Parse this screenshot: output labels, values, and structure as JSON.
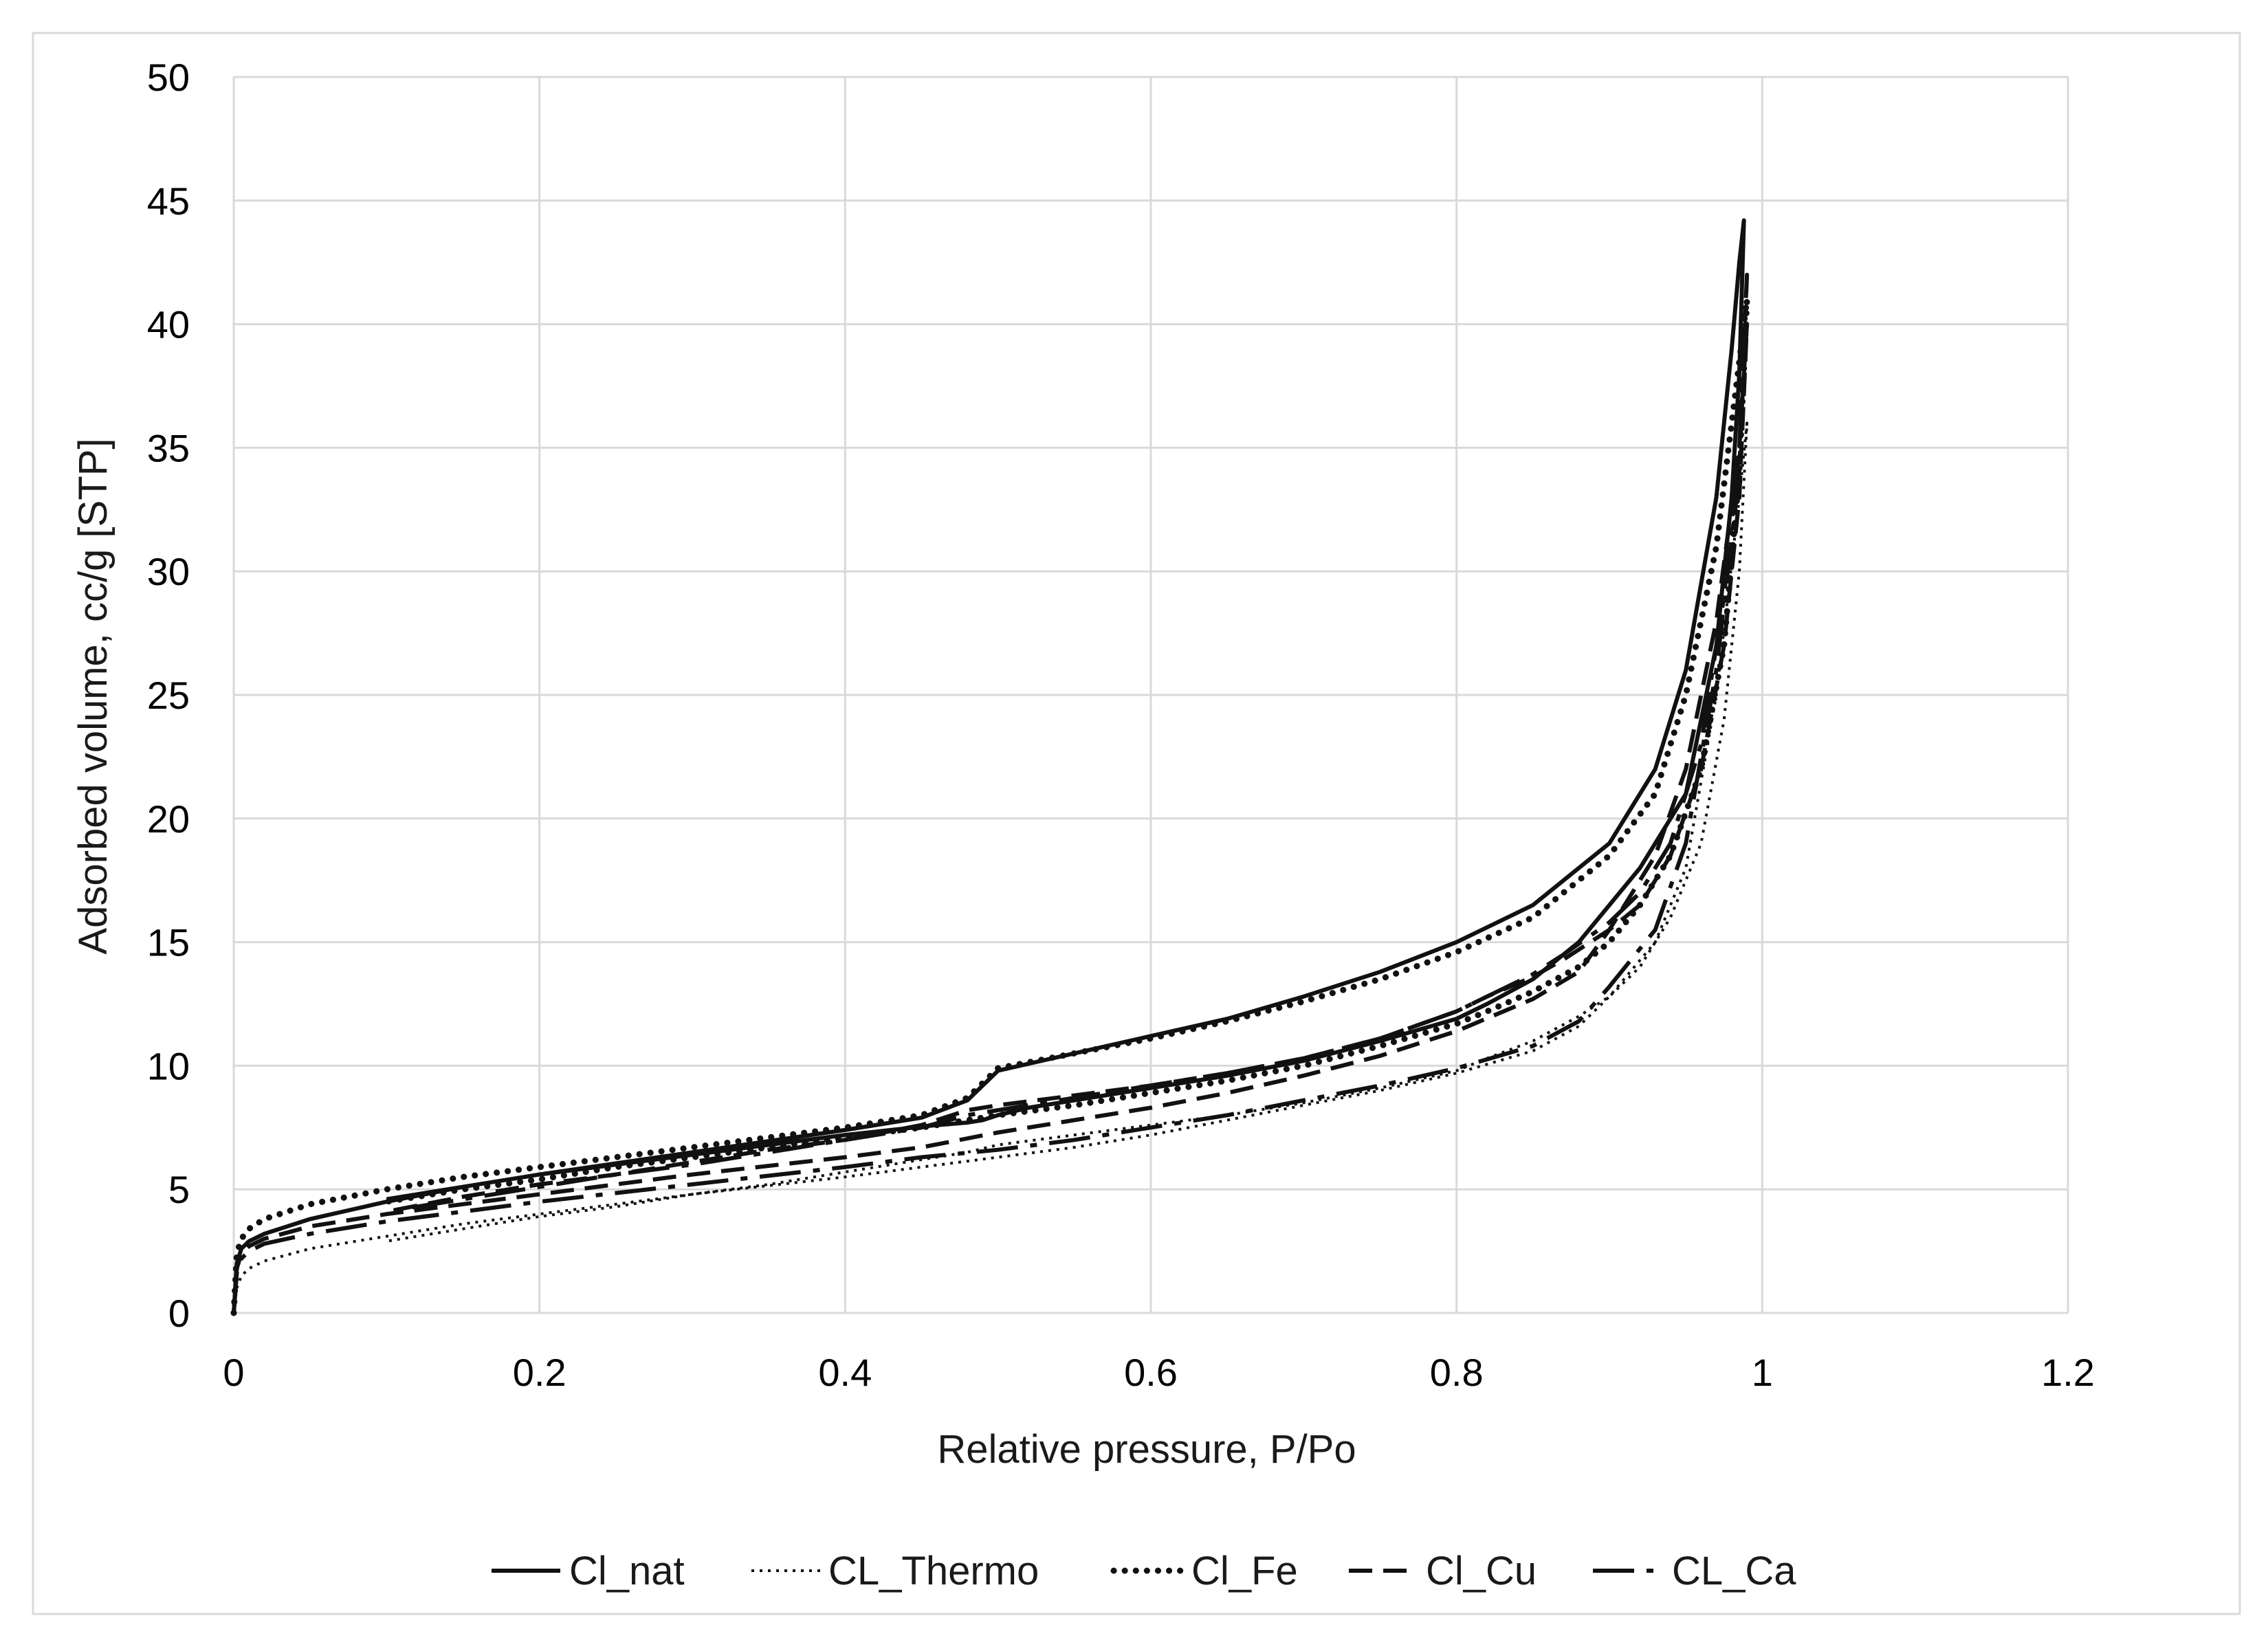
{
  "chart_data": {
    "type": "line",
    "title": "",
    "xlabel": "Relative pressure, P/Po",
    "ylabel": "Adsorbed volume, cc/g [STP]",
    "xlim": [
      0,
      1.2
    ],
    "ylim": [
      0,
      50
    ],
    "xticks": [
      0,
      0.2,
      0.4,
      0.6,
      0.8,
      1,
      1.2
    ],
    "xtick_labels": [
      "0",
      "0.2",
      "0.4",
      "0.6",
      "0.8",
      "1",
      "1.2"
    ],
    "yticks": [
      0,
      5,
      10,
      15,
      20,
      25,
      30,
      35,
      40,
      45,
      50
    ],
    "ytick_labels": [
      "0",
      "5",
      "10",
      "15",
      "20",
      "25",
      "30",
      "35",
      "40",
      "45",
      "50"
    ],
    "grid": true,
    "legend_position": "bottom",
    "series": [
      {
        "name": "Cl_nat",
        "style": "solid",
        "x": [
          0,
          0.002,
          0.005,
          0.01,
          0.02,
          0.05,
          0.1,
          0.15,
          0.2,
          0.3,
          0.4,
          0.45,
          0.48,
          0.5,
          0.55,
          0.6,
          0.65,
          0.7,
          0.75,
          0.8,
          0.85,
          0.9,
          0.93,
          0.95,
          0.97,
          0.98,
          0.985,
          0.988,
          0.985,
          0.98,
          0.97,
          0.95,
          0.92,
          0.9,
          0.88,
          0.85,
          0.82,
          0.8,
          0.75,
          0.7,
          0.65,
          0.6,
          0.55,
          0.52,
          0.5,
          0.49,
          0.48,
          0.46,
          0.43,
          0.4,
          0.35,
          0.3,
          0.25,
          0.2,
          0.15,
          0.1
        ],
        "y": [
          0,
          2.0,
          2.6,
          2.9,
          3.2,
          3.8,
          4.5,
          5.1,
          5.6,
          6.5,
          7.4,
          7.9,
          8.6,
          9.8,
          10.5,
          11.2,
          11.9,
          12.8,
          13.8,
          15.0,
          16.5,
          19.0,
          22.0,
          26.0,
          33.0,
          39.0,
          42.5,
          44.2,
          38.0,
          33.0,
          27.0,
          21.0,
          18.0,
          16.5,
          15.0,
          13.5,
          12.5,
          11.9,
          11.0,
          10.2,
          9.6,
          9.1,
          8.6,
          8.3,
          8.0,
          7.8,
          7.7,
          7.6,
          7.4,
          7.2,
          6.8,
          6.4,
          6.0,
          5.6,
          5.1,
          4.6
        ]
      },
      {
        "name": "CL_Thermo",
        "style": "dotted",
        "x": [
          0,
          0.002,
          0.005,
          0.01,
          0.02,
          0.05,
          0.1,
          0.15,
          0.2,
          0.3,
          0.4,
          0.45,
          0.5,
          0.55,
          0.6,
          0.65,
          0.7,
          0.75,
          0.8,
          0.85,
          0.88,
          0.9,
          0.93,
          0.95,
          0.97,
          0.985,
          0.99,
          0.985,
          0.975,
          0.96,
          0.94,
          0.92,
          0.9,
          0.88,
          0.85,
          0.82,
          0.8,
          0.75,
          0.7,
          0.65,
          0.6,
          0.55,
          0.5,
          0.48,
          0.45,
          0.4,
          0.35,
          0.3,
          0.25,
          0.2,
          0.15,
          0.1
        ],
        "y": [
          0,
          1.0,
          1.5,
          1.8,
          2.1,
          2.6,
          3.1,
          3.6,
          4.0,
          4.8,
          5.5,
          5.9,
          6.3,
          6.7,
          7.2,
          7.8,
          8.4,
          9.0,
          9.7,
          10.6,
          11.6,
          12.8,
          15.0,
          18.0,
          25.0,
          33.0,
          36.0,
          30.0,
          24.0,
          19.0,
          16.0,
          14.0,
          12.8,
          12.0,
          11.0,
          10.3,
          9.8,
          9.1,
          8.5,
          8.0,
          7.6,
          7.2,
          6.8,
          6.5,
          6.2,
          5.7,
          5.2,
          4.8,
          4.3,
          3.9,
          3.4,
          2.9
        ]
      },
      {
        "name": "Cl_Fe",
        "style": "dotted-bold",
        "x": [
          0,
          0.002,
          0.005,
          0.01,
          0.02,
          0.05,
          0.1,
          0.15,
          0.2,
          0.3,
          0.4,
          0.45,
          0.48,
          0.5,
          0.55,
          0.6,
          0.65,
          0.7,
          0.75,
          0.8,
          0.85,
          0.9,
          0.93,
          0.95,
          0.97,
          0.98,
          0.99,
          0.985,
          0.975,
          0.96,
          0.94,
          0.92,
          0.9,
          0.88,
          0.85,
          0.82,
          0.8,
          0.75,
          0.7,
          0.65,
          0.6,
          0.55,
          0.5,
          0.48,
          0.45,
          0.4,
          0.35,
          0.3,
          0.25,
          0.2,
          0.15,
          0.1
        ],
        "y": [
          0,
          2.4,
          3.0,
          3.4,
          3.8,
          4.4,
          5.0,
          5.5,
          5.9,
          6.7,
          7.5,
          8.0,
          8.7,
          9.9,
          10.5,
          11.1,
          11.8,
          12.6,
          13.5,
          14.6,
          16.0,
          18.5,
          21.0,
          25.0,
          31.0,
          36.0,
          41.0,
          34.0,
          27.0,
          22.0,
          18.5,
          16.5,
          15.0,
          14.0,
          13.0,
          12.2,
          11.7,
          10.8,
          10.0,
          9.4,
          8.9,
          8.4,
          8.0,
          7.8,
          7.5,
          7.1,
          6.7,
          6.3,
          5.9,
          5.4,
          5.0,
          4.5
        ]
      },
      {
        "name": "Cl_Cu",
        "style": "dashed",
        "x": [
          0,
          0.002,
          0.005,
          0.01,
          0.02,
          0.05,
          0.1,
          0.15,
          0.2,
          0.3,
          0.4,
          0.45,
          0.5,
          0.55,
          0.6,
          0.65,
          0.7,
          0.75,
          0.8,
          0.85,
          0.88,
          0.9,
          0.93,
          0.95,
          0.97,
          0.985,
          0.99,
          0.985,
          0.975,
          0.96,
          0.94,
          0.92,
          0.9,
          0.87,
          0.85,
          0.82,
          0.8,
          0.75,
          0.7,
          0.65,
          0.6,
          0.55,
          0.5,
          0.48,
          0.45,
          0.4,
          0.35,
          0.3,
          0.25,
          0.2,
          0.15,
          0.1
        ],
        "y": [
          0,
          1.8,
          2.4,
          2.7,
          3.0,
          3.5,
          4.0,
          4.4,
          4.8,
          5.6,
          6.3,
          6.7,
          7.3,
          7.8,
          8.3,
          8.9,
          9.6,
          10.4,
          11.4,
          12.7,
          13.8,
          15.5,
          18.5,
          22.0,
          28.0,
          35.0,
          40.0,
          33.0,
          27.0,
          22.0,
          18.5,
          16.5,
          15.5,
          14.3,
          13.6,
          12.8,
          12.2,
          11.1,
          10.3,
          9.7,
          9.2,
          8.8,
          8.4,
          8.2,
          7.6,
          7.0,
          6.6,
          6.1,
          5.6,
          5.2,
          4.7,
          4.1
        ]
      },
      {
        "name": "CL_Ca",
        "style": "longdash",
        "x": [
          0,
          0.002,
          0.005,
          0.01,
          0.02,
          0.05,
          0.1,
          0.15,
          0.2,
          0.3,
          0.4,
          0.45,
          0.5,
          0.55,
          0.6,
          0.65,
          0.7,
          0.75,
          0.8,
          0.85,
          0.88,
          0.9,
          0.93,
          0.95,
          0.97,
          0.985,
          0.99,
          0.985,
          0.975,
          0.96,
          0.94,
          0.92,
          0.9,
          0.87,
          0.85,
          0.82,
          0.8,
          0.75,
          0.7,
          0.65,
          0.6,
          0.55,
          0.5,
          0.48,
          0.45,
          0.4,
          0.35,
          0.3,
          0.25,
          0.2,
          0.15,
          0.1
        ],
        "y": [
          0,
          1.6,
          2.2,
          2.5,
          2.8,
          3.2,
          3.7,
          4.1,
          4.5,
          5.2,
          5.9,
          6.3,
          6.6,
          7.0,
          7.5,
          8.0,
          8.6,
          9.2,
          9.9,
          10.8,
          11.8,
          13.2,
          15.5,
          19.0,
          26.0,
          34.0,
          42.0,
          35.0,
          29.0,
          23.0,
          19.0,
          17.0,
          15.8,
          14.5,
          13.7,
          12.8,
          12.2,
          11.1,
          10.3,
          9.7,
          9.2,
          8.7,
          8.2,
          8.0,
          7.5,
          7.0,
          6.5,
          6.0,
          5.6,
          5.1,
          4.6,
          4.1
        ]
      }
    ]
  }
}
